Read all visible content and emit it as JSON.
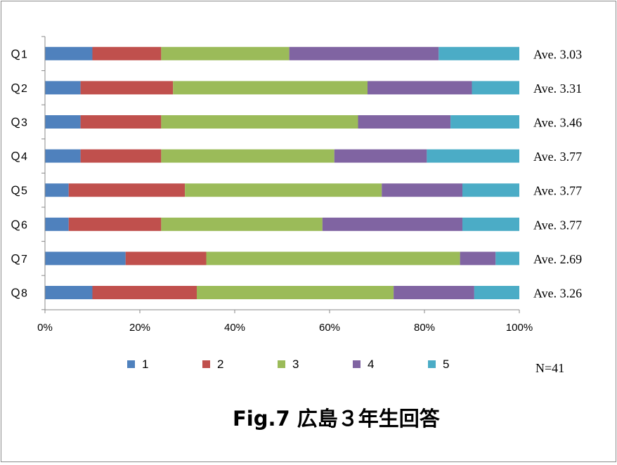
{
  "chart_data": {
    "type": "bar",
    "orientation": "horizontal",
    "stacked": "percent",
    "title": "Fig.7 広島３年生回答",
    "categories": [
      "Ｑ1",
      "Ｑ2",
      "Ｑ3",
      "Ｑ4",
      "Ｑ5",
      "Ｑ6",
      "Ｑ7",
      "Ｑ8"
    ],
    "series": [
      {
        "name": "1",
        "color": "#4f81bd",
        "values": [
          10,
          7.5,
          7.5,
          7.5,
          5,
          5,
          17,
          10
        ]
      },
      {
        "name": "2",
        "color": "#c0504d",
        "values": [
          14.5,
          19.5,
          17,
          17,
          24.5,
          19.5,
          17,
          22
        ]
      },
      {
        "name": "3",
        "color": "#9bbb59",
        "values": [
          27,
          41,
          41.5,
          36.5,
          41.5,
          34,
          53.5,
          41.5
        ]
      },
      {
        "name": "4",
        "color": "#8064a2",
        "values": [
          31.5,
          22,
          19.5,
          19.5,
          17,
          29.5,
          7.5,
          17
        ]
      },
      {
        "name": "5",
        "color": "#4bacc6",
        "values": [
          17,
          10,
          14.5,
          19.5,
          12,
          12,
          5,
          9.5
        ]
      }
    ],
    "averages": [
      "Ave.  3.03",
      "Ave.  3.31",
      "Ave.  3.46",
      "Ave.  3.77",
      "Ave.  3.77",
      "Ave.  3.77",
      "Ave.  2.69",
      "Ave.  3.26"
    ],
    "xlim": [
      0,
      100
    ],
    "x_ticks": [
      "0%",
      "20%",
      "40%",
      "60%",
      "80%",
      "100%"
    ],
    "legend_position": "bottom",
    "note": "N=41",
    "grid": false
  }
}
